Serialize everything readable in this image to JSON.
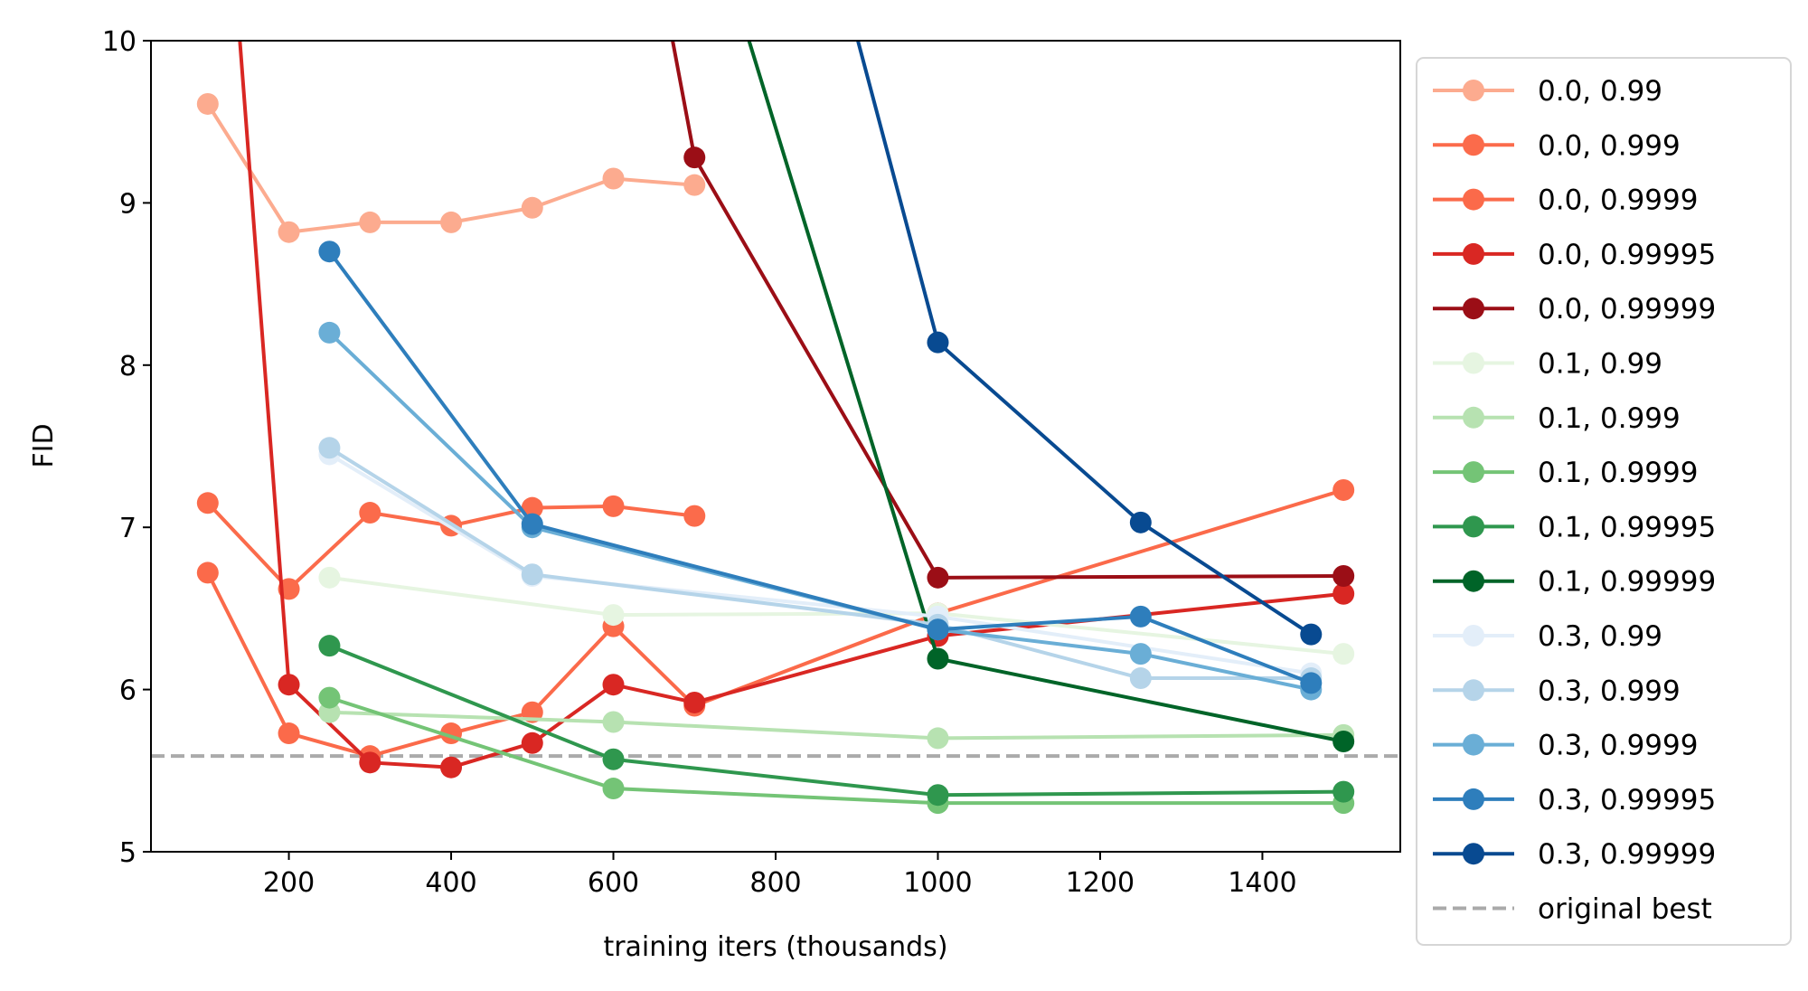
{
  "chart_data": {
    "type": "line",
    "title": "",
    "xlabel": "training iters (thousands)",
    "ylabel": "FID",
    "xlim": [
      30,
      1570
    ],
    "ylim": [
      5,
      10
    ],
    "xticks": [
      200,
      400,
      600,
      800,
      1000,
      1200,
      1400
    ],
    "yticks": [
      5,
      6,
      7,
      8,
      9,
      10
    ],
    "grid": false,
    "legend_placement": "outside-right",
    "series": [
      {
        "name": "0.0, 0.99",
        "color": "#fcab8f",
        "x": [
          100,
          200,
          300,
          400,
          500,
          600,
          700
        ],
        "y": [
          9.61,
          8.82,
          8.88,
          8.88,
          8.97,
          9.15,
          9.11
        ]
      },
      {
        "name": "0.0, 0.999",
        "color": "#fb6b4b",
        "x": [
          100,
          200,
          300,
          400,
          500,
          600,
          700
        ],
        "y": [
          7.15,
          6.62,
          7.09,
          7.01,
          7.12,
          7.13,
          7.07
        ]
      },
      {
        "name": "0.0, 0.9999",
        "color": "#fb6a4a",
        "x": [
          100,
          200,
          300,
          400,
          500,
          600,
          700,
          1000,
          1500
        ],
        "y": [
          6.72,
          5.73,
          5.59,
          5.73,
          5.86,
          6.39,
          5.9,
          6.47,
          7.23
        ]
      },
      {
        "name": "0.0, 0.99995",
        "color": "#d92723",
        "x": [
          100,
          200,
          300,
          400,
          500,
          600,
          700,
          1000,
          1500
        ],
        "y": [
          12.6,
          6.03,
          5.55,
          5.52,
          5.67,
          6.03,
          5.92,
          6.33,
          6.59
        ]
      },
      {
        "name": "0.0, 0.99999",
        "color": "#9b0e16",
        "x": [
          600,
          700,
          1000,
          1500
        ],
        "y": [
          11.95,
          9.28,
          6.69,
          6.7
        ]
      },
      {
        "name": "0.1, 0.99",
        "color": "#e6f5e1",
        "x": [
          250,
          600,
          1000,
          1500
        ],
        "y": [
          6.69,
          6.46,
          6.47,
          6.22
        ]
      },
      {
        "name": "0.1, 0.999",
        "color": "#b7e2b1",
        "x": [
          250,
          600,
          1000,
          1500
        ],
        "y": [
          5.86,
          5.8,
          5.7,
          5.72
        ]
      },
      {
        "name": "0.1, 0.9999",
        "color": "#74c476",
        "x": [
          250,
          600,
          1000,
          1500
        ],
        "y": [
          5.95,
          5.39,
          5.3,
          5.3
        ]
      },
      {
        "name": "0.1, 0.99995",
        "color": "#2f974e",
        "x": [
          250,
          600,
          1000,
          1500
        ],
        "y": [
          6.27,
          5.57,
          5.35,
          5.37
        ]
      },
      {
        "name": "0.1, 0.99999",
        "color": "#006428",
        "x": [
          700,
          1000,
          1500
        ],
        "y": [
          11.1,
          6.19,
          5.68
        ]
      },
      {
        "name": "0.3, 0.99",
        "color": "#e3eef9",
        "x": [
          250,
          500,
          1000,
          1460
        ],
        "y": [
          7.45,
          6.7,
          6.45,
          6.1
        ]
      },
      {
        "name": "0.3, 0.999",
        "color": "#b5d4e9",
        "x": [
          250,
          500,
          1000,
          1250,
          1460
        ],
        "y": [
          7.49,
          6.71,
          6.4,
          6.07,
          6.07
        ]
      },
      {
        "name": "0.3, 0.9999",
        "color": "#6aaed6",
        "x": [
          250,
          500,
          1000,
          1250,
          1460
        ],
        "y": [
          8.2,
          7.0,
          6.37,
          6.22,
          6.0
        ]
      },
      {
        "name": "0.3, 0.99995",
        "color": "#2e7ebc",
        "x": [
          250,
          500,
          1000,
          1250,
          1460
        ],
        "y": [
          8.7,
          7.02,
          6.37,
          6.45,
          6.04
        ]
      },
      {
        "name": "0.3, 0.99999",
        "color": "#084a91",
        "x": [
          700,
          1000,
          1250,
          1460
        ],
        "y": [
          13.8,
          8.14,
          7.03,
          6.34
        ]
      }
    ],
    "reference_line": {
      "name": "original best",
      "y": 5.59,
      "color": "#aaaaaa",
      "style": "dashed"
    }
  }
}
